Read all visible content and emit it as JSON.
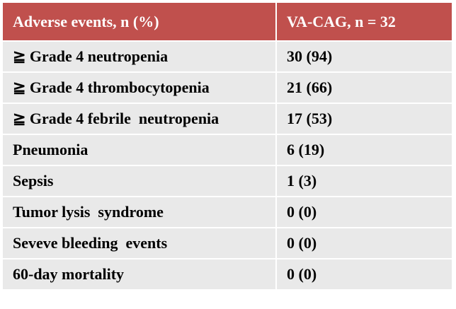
{
  "table": {
    "header": [
      "Adverse events, n (%)",
      "VA-CAG, n = 32"
    ],
    "rows": [
      [
        "≧ Grade 4 neutropenia",
        "30 (94)"
      ],
      [
        "≧ Grade 4 thrombocytopenia",
        "21 (66)"
      ],
      [
        "≧ Grade 4 febrile  neutropenia",
        "17 (53)"
      ],
      [
        "Pneumonia",
        "6 (19)"
      ],
      [
        "Sepsis",
        "1 (3)"
      ],
      [
        "Tumor lysis  syndrome",
        "0 (0)"
      ],
      [
        "Seveve bleeding  events",
        "0 (0)"
      ],
      [
        "60-day mortality",
        "0 (0)"
      ]
    ]
  }
}
